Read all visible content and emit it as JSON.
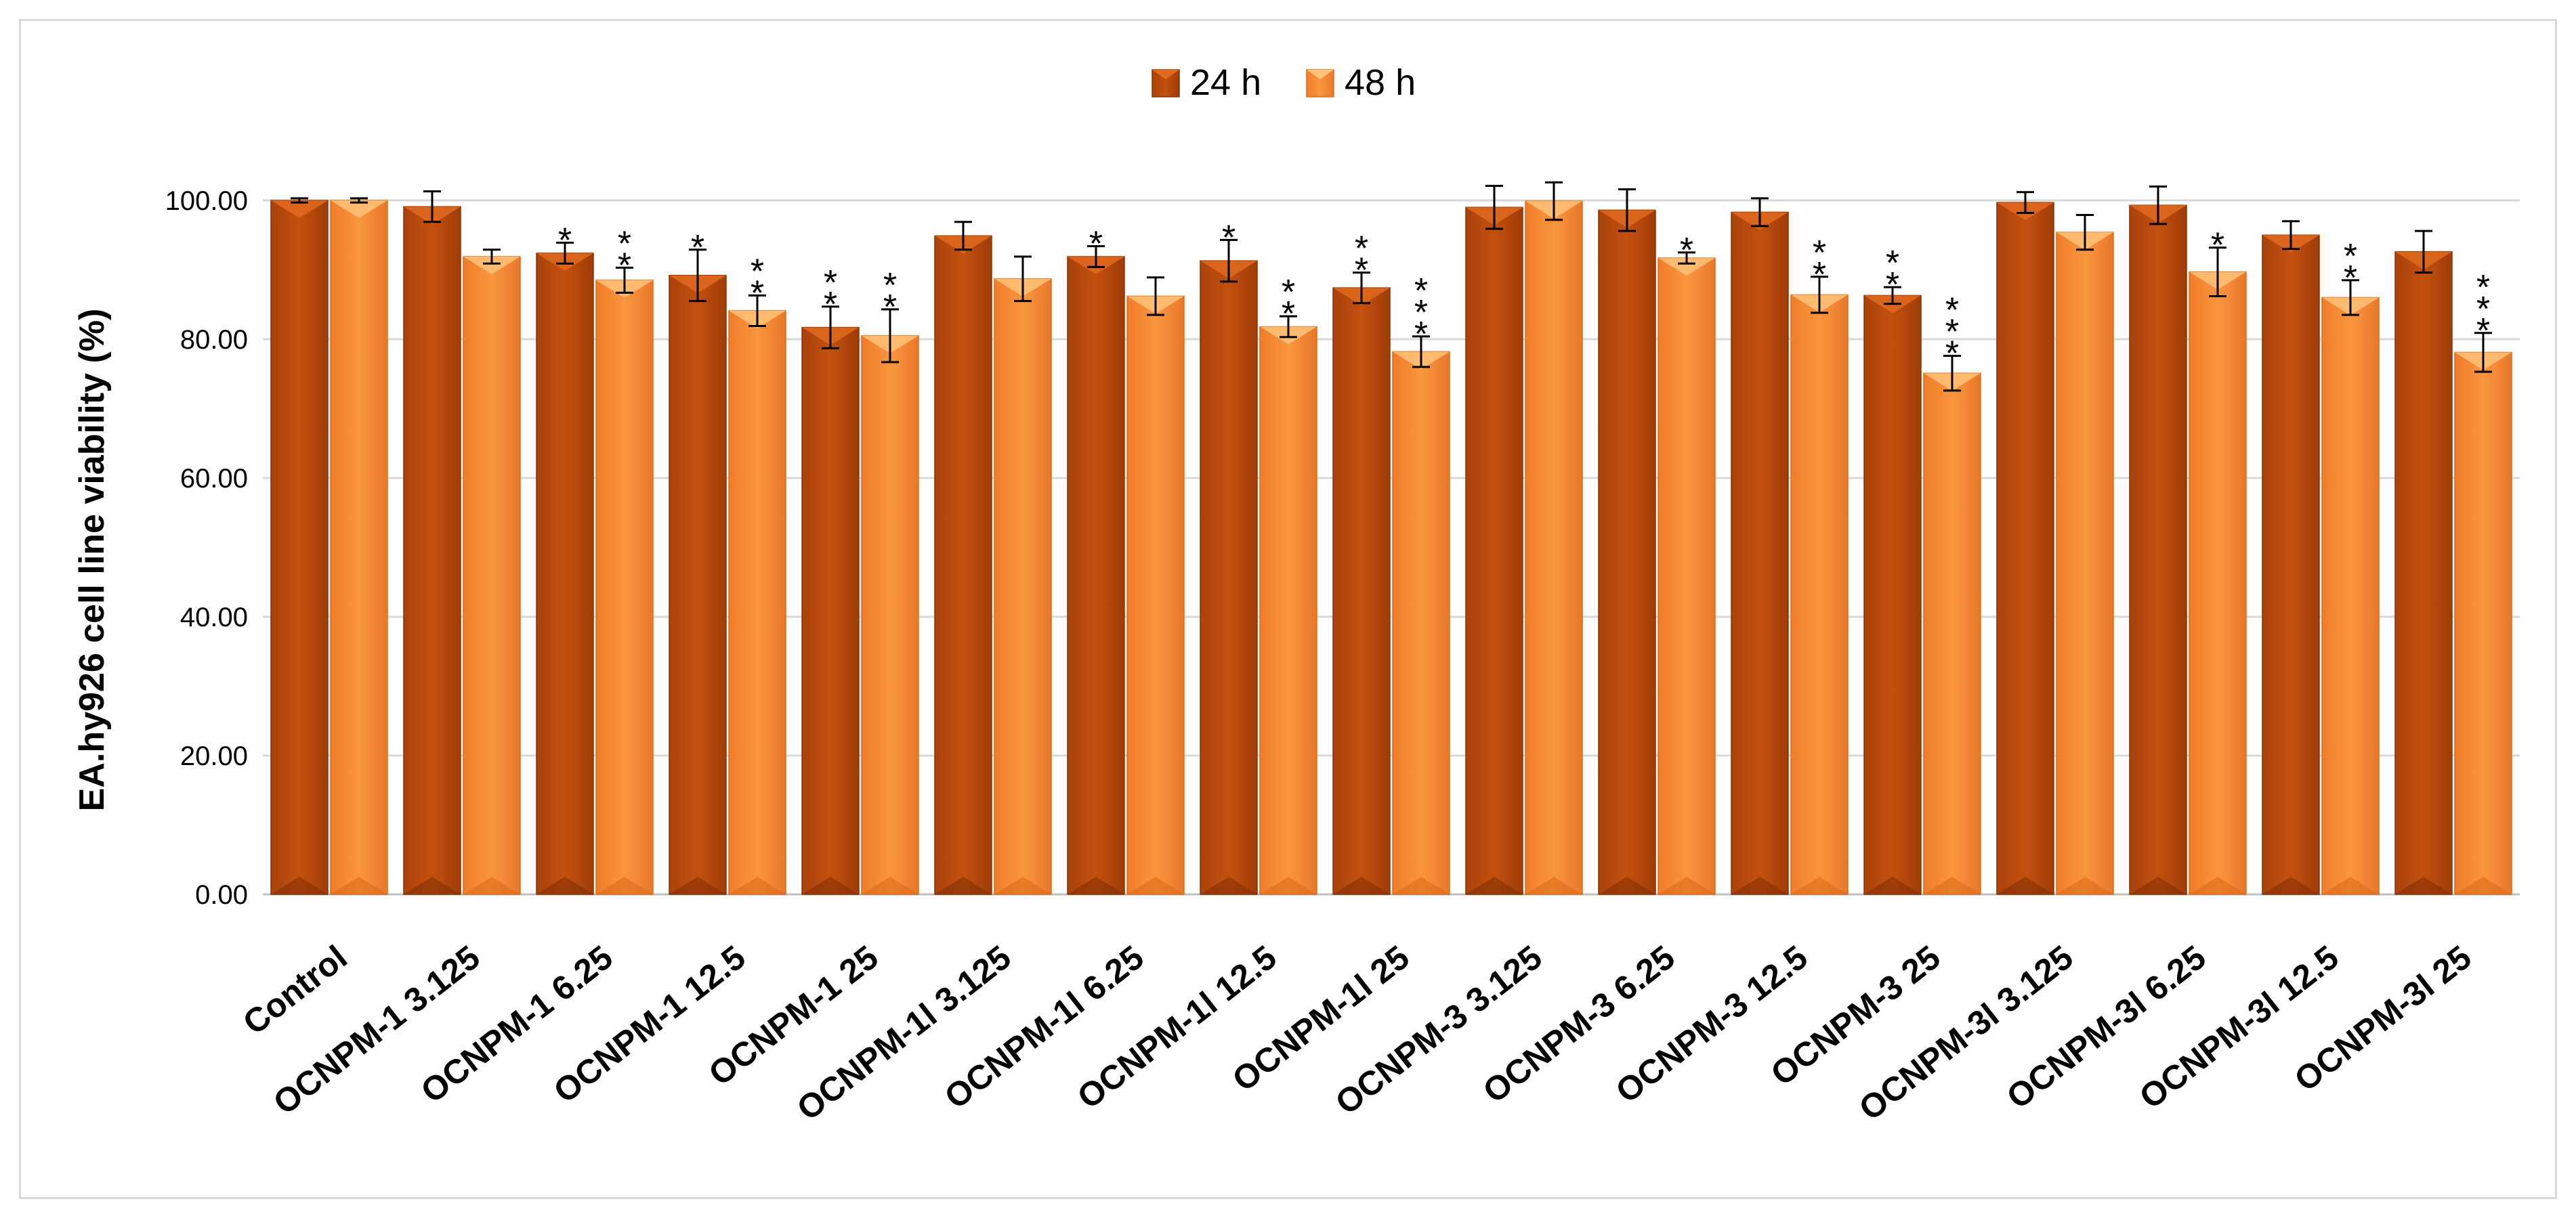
{
  "chart_data": {
    "type": "bar",
    "ylabel": "EA.hy926  cell line viability (%)",
    "ylim": [
      0,
      100
    ],
    "yticks": [
      "0.00",
      "20.00",
      "40.00",
      "60.00",
      "80.00",
      "100.00"
    ],
    "grid": "horizontal",
    "legend_position": "top-center",
    "categories": [
      "Control",
      "OCNPM-1 3.125",
      "OCNPM-1 6.25",
      "OCNPM-1 12.5",
      "OCNPM-1 25",
      "OCNPM-1l 3.125",
      "OCNPM-1l 6.25",
      "OCNPM-1l 12.5",
      "OCNPM-1l 25",
      "OCNPM-3 3.125",
      "OCNPM-3 6.25",
      "OCNPM-3 12.5",
      "OCNPM-3 25",
      "OCNPM-3l 3.125",
      "OCNPM-3l 6.25",
      "OCNPM-3l 12.5",
      "OCNPM-3l 25"
    ],
    "series": [
      {
        "name": "24 h",
        "color": "#c4500f",
        "values": [
          100.0,
          99.1,
          92.4,
          89.2,
          81.7,
          94.9,
          91.9,
          91.3,
          87.4,
          99.0,
          98.6,
          98.3,
          86.3,
          99.7,
          99.3,
          95.0,
          92.6
        ],
        "errors": [
          0.3,
          2.2,
          1.5,
          3.7,
          3.0,
          2.0,
          1.5,
          3.0,
          2.2,
          3.1,
          3.0,
          2.0,
          1.2,
          1.5,
          2.7,
          2.0,
          3.0
        ],
        "significance": [
          "",
          "",
          "*",
          "*",
          "**",
          "",
          "*",
          "*",
          "**",
          "",
          "",
          "",
          "**",
          "",
          "",
          "",
          ""
        ]
      },
      {
        "name": "48 h",
        "color": "#f58b3c",
        "values": [
          100.0,
          91.9,
          88.5,
          84.1,
          80.5,
          88.7,
          86.2,
          81.8,
          78.2,
          99.9,
          91.7,
          86.4,
          75.1,
          95.4,
          89.7,
          86.0,
          78.1
        ],
        "errors": [
          0.3,
          1.0,
          1.8,
          2.2,
          3.8,
          3.2,
          2.7,
          1.5,
          2.2,
          2.7,
          0.8,
          2.6,
          2.5,
          2.5,
          3.5,
          2.5,
          2.8
        ],
        "significance": [
          "",
          "",
          "**",
          "**",
          "**",
          "",
          "",
          "**",
          "***",
          "",
          "*",
          "**",
          "***",
          "",
          "*",
          "**",
          "***"
        ]
      }
    ]
  }
}
